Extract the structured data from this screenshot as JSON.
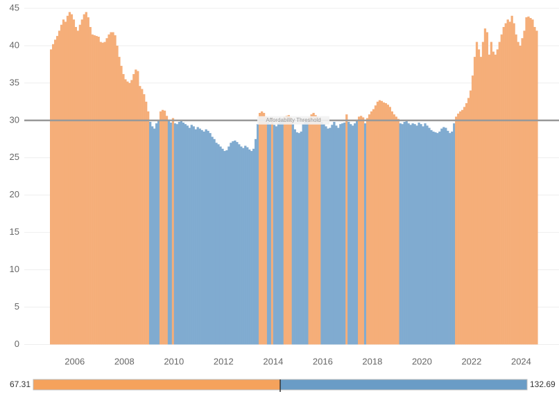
{
  "chart_data": {
    "type": "bar",
    "categories": [
      null,
      null,
      null,
      null,
      null,
      null,
      null,
      null,
      null,
      null,
      null,
      null,
      "2006",
      null,
      null,
      null,
      null,
      null,
      null,
      null,
      null,
      null,
      null,
      null,
      null,
      null,
      null,
      null,
      null,
      null,
      null,
      null,
      null,
      null,
      null,
      null,
      "2008",
      null,
      null,
      null,
      null,
      null,
      null,
      null,
      null,
      null,
      null,
      null,
      null,
      null,
      null,
      null,
      null,
      null,
      null,
      null,
      null,
      null,
      null,
      null,
      "2010",
      null,
      null,
      null,
      null,
      null,
      null,
      null,
      null,
      null,
      null,
      null,
      null,
      null,
      null,
      null,
      null,
      null,
      null,
      null,
      null,
      null,
      null,
      null,
      "2012",
      null,
      null,
      null,
      null,
      null,
      null,
      null,
      null,
      null,
      null,
      null,
      null,
      null,
      null,
      null,
      null,
      null,
      null,
      null,
      null,
      null,
      null,
      null,
      "2014",
      null,
      null,
      null,
      null,
      null,
      null,
      null,
      null,
      null,
      null,
      null,
      null,
      null,
      null,
      null,
      null,
      null,
      null,
      null,
      null,
      null,
      null,
      null,
      "2016",
      null,
      null,
      null,
      null,
      null,
      null,
      null,
      null,
      null,
      null,
      null,
      null,
      null,
      null,
      null,
      null,
      null,
      null,
      null,
      null,
      null,
      null,
      null,
      "2018",
      null,
      null,
      null,
      null,
      null,
      null,
      null,
      null,
      null,
      null,
      null,
      null,
      null,
      null,
      null,
      null,
      null,
      null,
      null,
      null,
      null,
      null,
      null,
      "2020",
      null,
      null,
      null,
      null,
      null,
      null,
      null,
      null,
      null,
      null,
      null,
      null,
      null,
      null,
      null,
      null,
      null,
      null,
      null,
      null,
      null,
      null,
      null,
      "2022",
      null,
      null,
      null,
      null,
      null,
      null,
      null,
      null,
      null,
      null,
      null,
      null,
      null,
      null,
      null,
      null,
      null,
      null,
      null,
      null,
      null,
      null,
      null,
      "2024",
      null,
      null,
      null,
      null,
      null,
      null,
      null
    ],
    "values": [
      39.5,
      40.2,
      40.8,
      41.3,
      42,
      42.8,
      43.5,
      43.2,
      44,
      44.5,
      44.2,
      43.5,
      42.5,
      42,
      42.8,
      43.5,
      44.2,
      44.5,
      43.8,
      42.5,
      41.5,
      41.4,
      41.3,
      41.2,
      40.5,
      40.4,
      40.5,
      41,
      41.5,
      41.8,
      41.8,
      41.4,
      40,
      38.5,
      37.3,
      36.2,
      35.5,
      35.2,
      35,
      35.4,
      36.2,
      36.8,
      36.6,
      34.6,
      34.2,
      33.5,
      32.5,
      31.2,
      29.8,
      29.2,
      28.9,
      29.6,
      29.9,
      31.2,
      31.4,
      31.3,
      30.6,
      29.9,
      29.7,
      30.3,
      29.6,
      29.5,
      29.8,
      29.9,
      29.7,
      29.5,
      29.3,
      29,
      29.4,
      29.2,
      28.8,
      29.1,
      28.9,
      28.7,
      28.5,
      28.8,
      28.6,
      28.3,
      27.8,
      27.5,
      27,
      26.8,
      26.5,
      26.2,
      25.9,
      26,
      26.5,
      27,
      27.2,
      27.3,
      27.1,
      26.8,
      26.5,
      26.3,
      26.6,
      26.4,
      26.1,
      25.9,
      26.2,
      27.5,
      29.5,
      31,
      31.2,
      31,
      30.5,
      29.8,
      29.5,
      30.3,
      29.4,
      29.2,
      29.6,
      29.8,
      29.9,
      30.5,
      30.6,
      30.7,
      30.4,
      29.5,
      28.8,
      28.4,
      28.3,
      28.5,
      29.5,
      29.8,
      29.9,
      30.4,
      30.8,
      31,
      30.7,
      30.5,
      30.3,
      29.8,
      29.5,
      29.2,
      28.9,
      29,
      29.4,
      29.8,
      29.3,
      29,
      29.5,
      29.6,
      29.7,
      30.8,
      29.8,
      29.5,
      29.3,
      29.6,
      29.9,
      30.5,
      30.6,
      30.4,
      29.6,
      30.3,
      30.8,
      31.2,
      31.5,
      32,
      32.5,
      32.7,
      32.6,
      32.4,
      32.3,
      32.1,
      31.8,
      31.2,
      30.8,
      30.5,
      30.2,
      29.6,
      29.5,
      29.8,
      29.9,
      29.6,
      29.4,
      29.6,
      29.5,
      29.3,
      29.7,
      29.5,
      29.2,
      29.6,
      29.3,
      29,
      28.7,
      28.5,
      28.4,
      28.3,
      28.5,
      28.9,
      29.1,
      29,
      28.6,
      28.3,
      28.5,
      29.6,
      30.5,
      30.9,
      31.2,
      31.4,
      31.8,
      32.3,
      33,
      34,
      36,
      38.5,
      40.5,
      39.5,
      38.5,
      40.5,
      42.3,
      41.8,
      38.8,
      40.5,
      39.2,
      38.8,
      39.5,
      40.5,
      41.5,
      42.5,
      43,
      43.5,
      43.2,
      44,
      43,
      41.5,
      40.5,
      40,
      41,
      42,
      43.8,
      43.9,
      43.7,
      43.5,
      42.5,
      42
    ],
    "color_above": "#f5ae79",
    "color_below": "#80abd0",
    "threshold": {
      "value": 30,
      "label": "Affordability Threshold"
    },
    "ylim": [
      -0.7,
      45
    ],
    "yticks": [
      0,
      5,
      10,
      15,
      20,
      25,
      30,
      35,
      40,
      45
    ],
    "grid": true,
    "color_range": [
      67.31,
      132.69
    ]
  }
}
